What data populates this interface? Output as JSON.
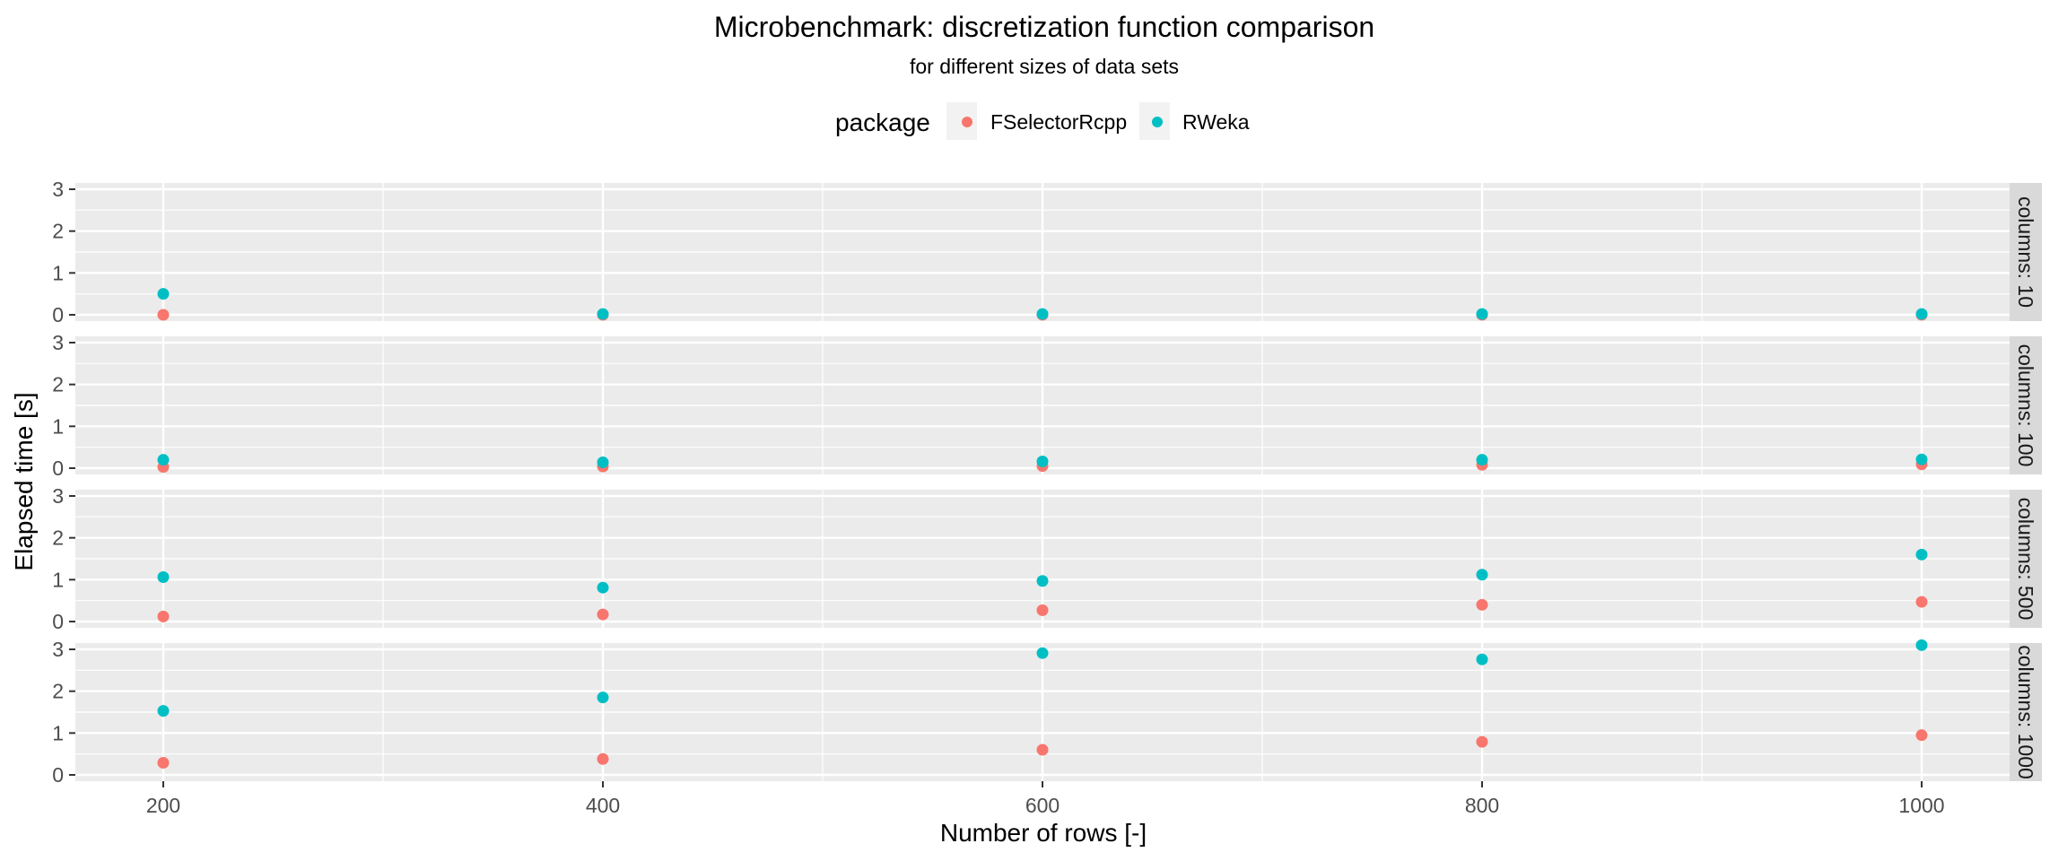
{
  "chart_data": {
    "type": "scatter",
    "title": "Microbenchmark: discretization function comparison",
    "subtitle": "for different sizes of data sets",
    "xlabel": "Number of rows [-]",
    "ylabel": "Elapsed time [s]",
    "xlim": [
      160,
      1040
    ],
    "ylim": [
      -0.15,
      3.15
    ],
    "x_ticks": [
      200,
      400,
      600,
      800,
      1000
    ],
    "y_ticks": [
      0,
      1,
      2,
      3
    ],
    "grid": true,
    "legend": {
      "title": "package",
      "position": "top",
      "entries": [
        {
          "name": "FSelectorRcpp",
          "color": "#F8766D"
        },
        {
          "name": "RWeka",
          "color": "#00BFC4"
        }
      ]
    },
    "facets": [
      {
        "label": "columns: 10",
        "series": [
          {
            "name": "FSelectorRcpp",
            "x": [
              200,
              400,
              600,
              800,
              1000
            ],
            "y": [
              0.0,
              0.0,
              0.0,
              0.0,
              0.0
            ]
          },
          {
            "name": "RWeka",
            "x": [
              200,
              400,
              600,
              800,
              1000
            ],
            "y": [
              0.5,
              0.02,
              0.02,
              0.02,
              0.02
            ]
          }
        ]
      },
      {
        "label": "columns: 100",
        "series": [
          {
            "name": "FSelectorRcpp",
            "x": [
              200,
              400,
              600,
              800,
              1000
            ],
            "y": [
              0.03,
              0.04,
              0.05,
              0.08,
              0.09
            ]
          },
          {
            "name": "RWeka",
            "x": [
              200,
              400,
              600,
              800,
              1000
            ],
            "y": [
              0.2,
              0.14,
              0.16,
              0.2,
              0.21
            ]
          }
        ]
      },
      {
        "label": "columns: 500",
        "series": [
          {
            "name": "FSelectorRcpp",
            "x": [
              200,
              400,
              600,
              800,
              1000
            ],
            "y": [
              0.12,
              0.17,
              0.27,
              0.4,
              0.47
            ]
          },
          {
            "name": "RWeka",
            "x": [
              200,
              400,
              600,
              800,
              1000
            ],
            "y": [
              1.06,
              0.81,
              0.97,
              1.12,
              1.6
            ]
          }
        ]
      },
      {
        "label": "columns: 1000",
        "series": [
          {
            "name": "FSelectorRcpp",
            "x": [
              200,
              400,
              600,
              800,
              1000
            ],
            "y": [
              0.29,
              0.38,
              0.6,
              0.79,
              0.95
            ]
          },
          {
            "name": "RWeka",
            "x": [
              200,
              400,
              600,
              800,
              1000
            ],
            "y": [
              1.53,
              1.85,
              2.91,
              2.76,
              3.1
            ]
          }
        ]
      }
    ]
  }
}
